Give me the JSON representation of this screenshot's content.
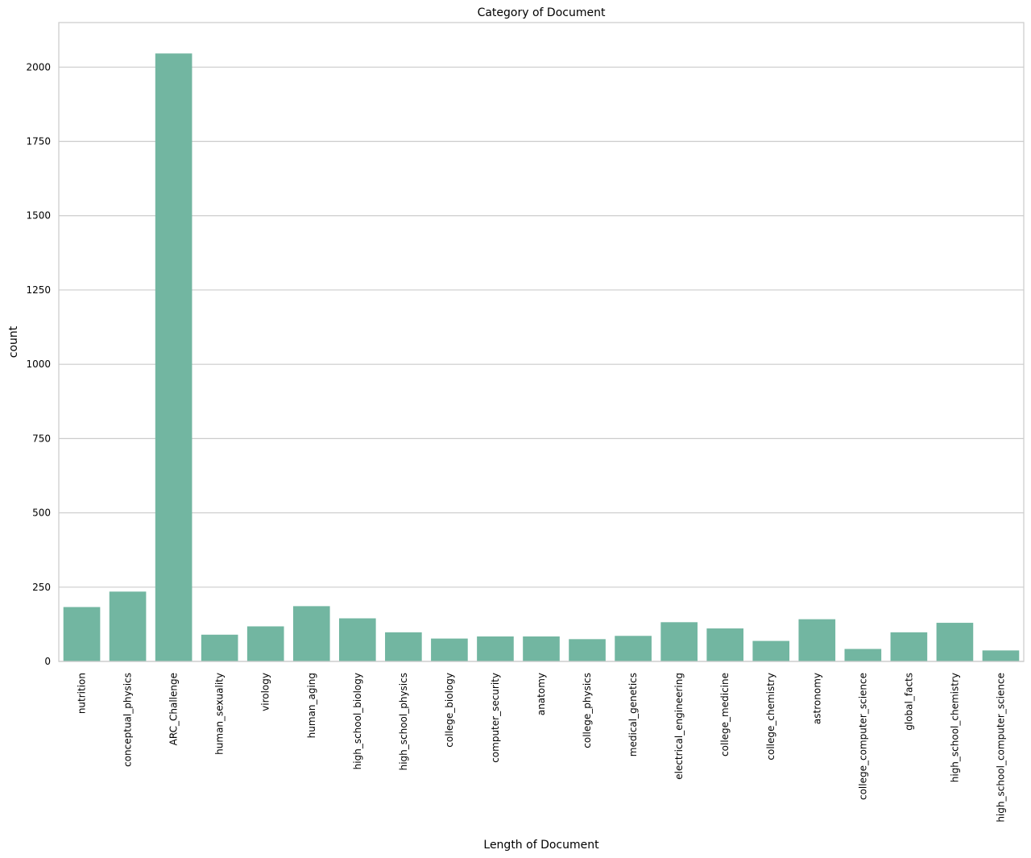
{
  "chart_data": {
    "type": "bar",
    "title": "Category of Document",
    "xlabel": "Length of Document",
    "ylabel": "count",
    "categories": [
      "nutrition",
      "conceptual_physics",
      "ARC_Challenge",
      "human_sexuality",
      "virology",
      "human_aging",
      "high_school_biology",
      "high_school_physics",
      "college_biology",
      "computer_security",
      "anatomy",
      "college_physics",
      "medical_genetics",
      "electrical_engineering",
      "college_medicine",
      "college_chemistry",
      "astronomy",
      "college_computer_science",
      "global_facts",
      "high_school_chemistry",
      "high_school_computer_science"
    ],
    "values": [
      183,
      235,
      2046,
      90,
      118,
      186,
      145,
      98,
      77,
      84,
      84,
      75,
      86,
      132,
      111,
      69,
      142,
      42,
      98,
      130,
      37
    ],
    "ylim": [
      0,
      2150
    ],
    "yticks": [
      0,
      250,
      500,
      750,
      1000,
      1250,
      1500,
      1750,
      2000
    ],
    "grid": "horizontal",
    "bar_color": "#72b6a1",
    "grid_color": "#cccccc"
  }
}
